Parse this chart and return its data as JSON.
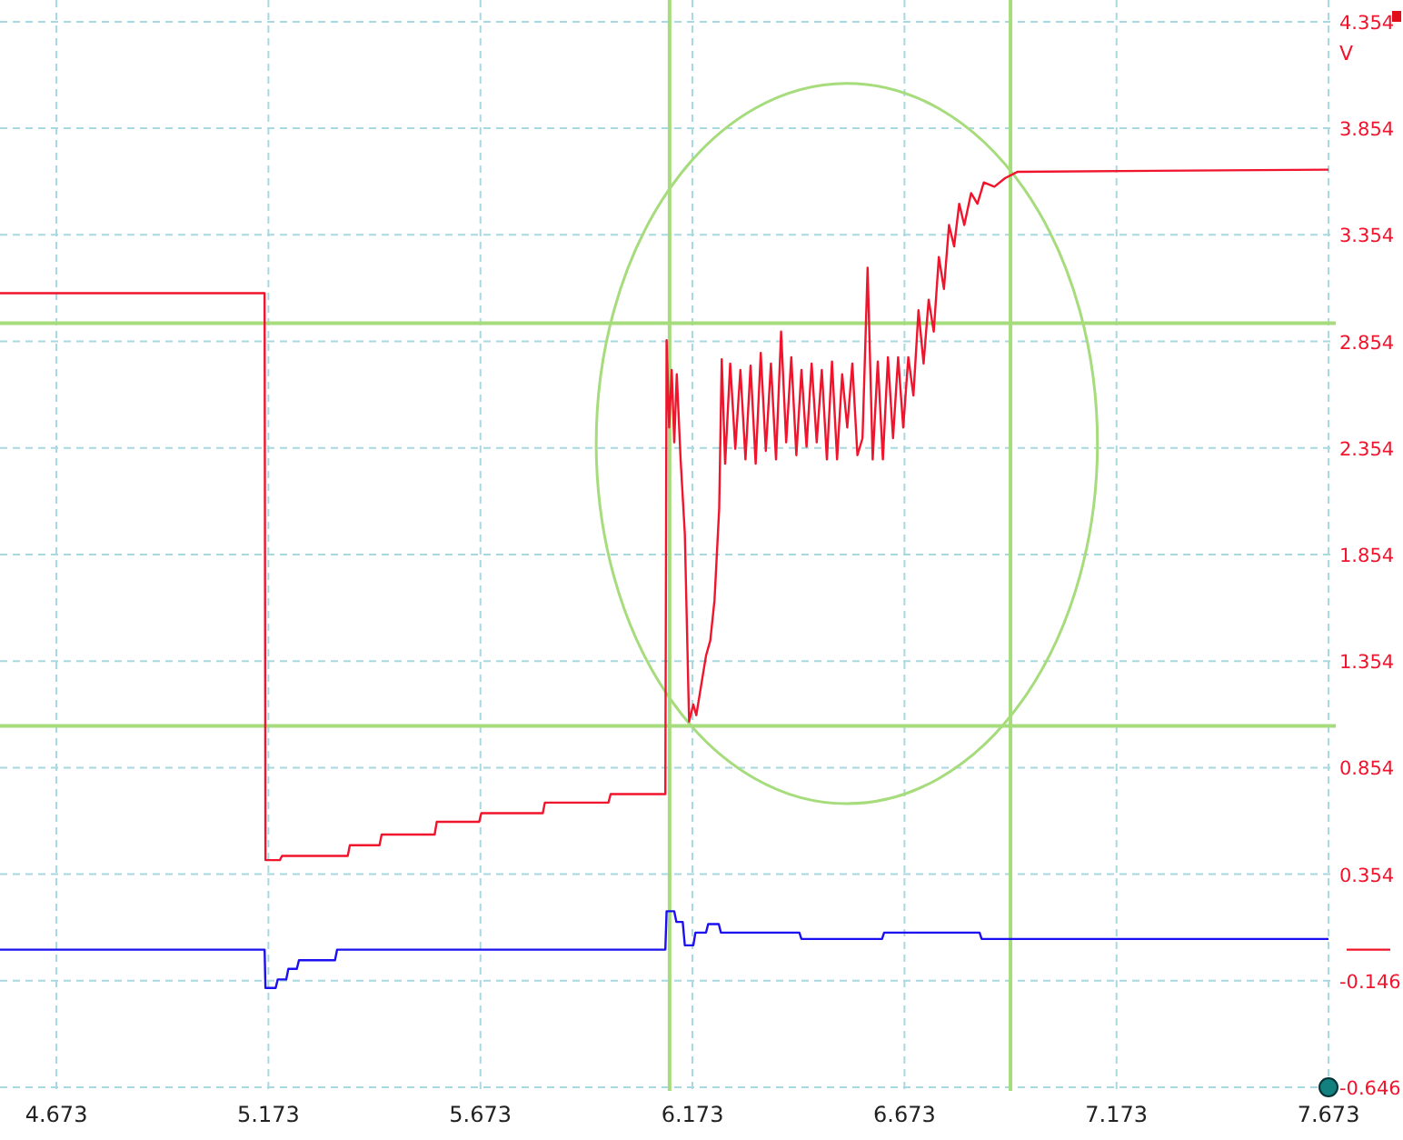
{
  "chart_data": {
    "type": "line",
    "ylabel": "V",
    "xlim": [
      4.54,
      7.69
    ],
    "xticks": [
      4.673,
      5.173,
      5.673,
      6.173,
      6.673,
      7.173,
      7.673
    ],
    "ylim": [
      -0.663,
      4.456
    ],
    "yticks": [
      4.354,
      3.854,
      3.354,
      2.854,
      2.354,
      1.854,
      1.354,
      0.854,
      0.354,
      -0.146,
      -0.646
    ],
    "grid": true,
    "marker": "none",
    "line_style": "solid",
    "series": [
      {
        "color": "#f0142c",
        "x": [
          4.54,
          5.164,
          5.166,
          5.2,
          5.205,
          5.36,
          5.365,
          5.435,
          5.44,
          5.565,
          5.57,
          5.67,
          5.675,
          5.82,
          5.825,
          5.975,
          5.98,
          6.109,
          6.112,
          6.118,
          6.124,
          6.13,
          6.136,
          6.145,
          6.155,
          6.165,
          6.175,
          6.182,
          6.205,
          6.215,
          6.225,
          6.236,
          6.242,
          6.25,
          6.262,
          6.274,
          6.286,
          6.298,
          6.31,
          6.322,
          6.334,
          6.346,
          6.358,
          6.37,
          6.382,
          6.394,
          6.406,
          6.418,
          6.43,
          6.442,
          6.454,
          6.466,
          6.478,
          6.49,
          6.502,
          6.514,
          6.526,
          6.538,
          6.55,
          6.562,
          6.574,
          6.586,
          6.598,
          6.61,
          6.622,
          6.634,
          6.646,
          6.658,
          6.67,
          6.682,
          6.694,
          6.706,
          6.718,
          6.73,
          6.742,
          6.754,
          6.766,
          6.778,
          6.79,
          6.802,
          6.814,
          6.83,
          6.845,
          6.86,
          6.885,
          6.91,
          6.94,
          7.673
        ],
        "values": [
          3.08,
          3.08,
          0.42,
          0.42,
          0.44,
          0.44,
          0.49,
          0.49,
          0.54,
          0.54,
          0.6,
          0.6,
          0.64,
          0.64,
          0.69,
          0.69,
          0.73,
          0.73,
          2.86,
          2.45,
          2.72,
          2.38,
          2.7,
          2.3,
          1.95,
          1.07,
          1.15,
          1.1,
          1.38,
          1.45,
          1.64,
          2.07,
          2.77,
          2.28,
          2.75,
          2.35,
          2.72,
          2.3,
          2.74,
          2.28,
          2.8,
          2.34,
          2.75,
          2.3,
          2.9,
          2.38,
          2.78,
          2.32,
          2.72,
          2.36,
          2.75,
          2.38,
          2.72,
          2.3,
          2.76,
          2.3,
          2.7,
          2.45,
          2.75,
          2.32,
          2.4,
          3.2,
          2.3,
          2.76,
          2.3,
          2.78,
          2.4,
          2.78,
          2.45,
          2.78,
          2.6,
          3.0,
          2.75,
          3.05,
          2.9,
          3.25,
          3.1,
          3.4,
          3.3,
          3.5,
          3.4,
          3.55,
          3.5,
          3.6,
          3.58,
          3.62,
          3.65,
          3.66
        ]
      },
      {
        "color": "#1a10f0",
        "x": [
          4.54,
          5.164,
          5.166,
          5.19,
          5.195,
          5.215,
          5.22,
          5.24,
          5.245,
          5.33,
          5.335,
          6.109,
          6.112,
          6.13,
          6.135,
          6.15,
          6.155,
          6.175,
          6.18,
          6.205,
          6.21,
          6.235,
          6.24,
          6.425,
          6.43,
          6.62,
          6.625,
          6.85,
          6.855,
          7.673
        ],
        "values": [
          0.0,
          0.0,
          -0.18,
          -0.18,
          -0.14,
          -0.14,
          -0.09,
          -0.09,
          -0.05,
          -0.05,
          0.0,
          0.0,
          0.18,
          0.18,
          0.13,
          0.13,
          0.02,
          0.02,
          0.08,
          0.08,
          0.12,
          0.12,
          0.08,
          0.08,
          0.05,
          0.05,
          0.08,
          0.08,
          0.05,
          0.05
        ]
      }
    ],
    "ref_lines": [
      {
        "axis": "y",
        "value": 2.94,
        "color": "#a6dc7c"
      },
      {
        "axis": "y",
        "value": 1.05,
        "color": "#a6dc7c"
      },
      {
        "axis": "x",
        "value": 6.119,
        "color": "#a6dc7c"
      },
      {
        "axis": "x",
        "value": 6.923,
        "color": "#a6dc7c"
      }
    ]
  }
}
